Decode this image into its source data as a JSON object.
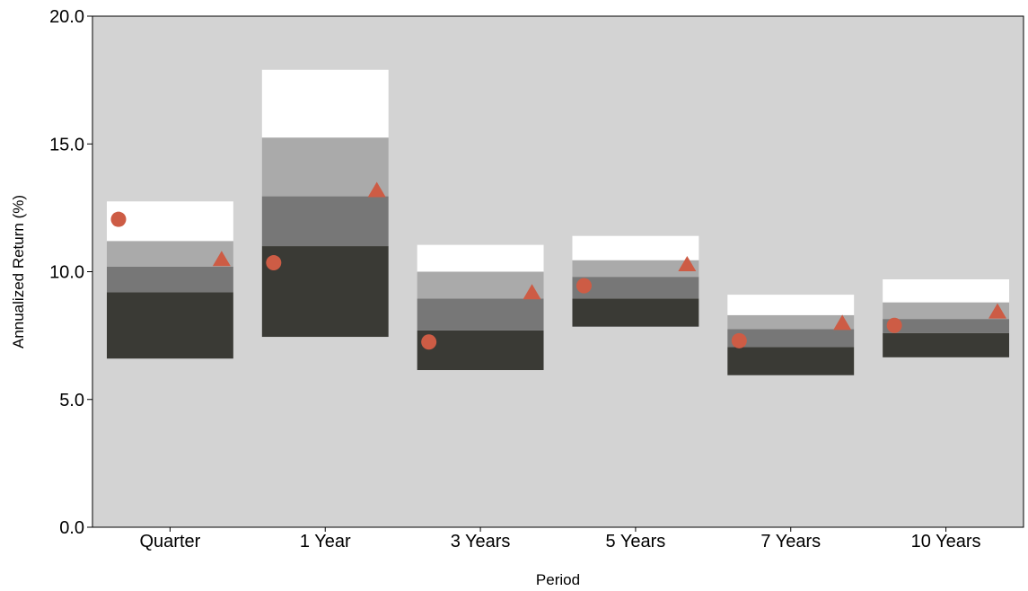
{
  "chart_data": {
    "type": "floating-bar",
    "title": "",
    "xlabel": "Period",
    "ylabel": "Annualized Return (%)",
    "ylim": [
      0,
      20
    ],
    "yticks": [
      "0.0",
      "5.0",
      "10.0",
      "15.0",
      "20.0"
    ],
    "categories": [
      "Quarter",
      "1 Year",
      "3 Years",
      "5 Years",
      "7 Years",
      "10 Years"
    ],
    "percentile_bands": [
      [
        6.6,
        9.2,
        10.2,
        11.2,
        12.75
      ],
      [
        7.45,
        11.0,
        12.95,
        15.25,
        17.9
      ],
      [
        6.15,
        7.7,
        8.95,
        10.0,
        11.05
      ],
      [
        7.85,
        8.95,
        9.8,
        10.45,
        11.4
      ],
      [
        5.95,
        7.05,
        7.75,
        8.3,
        9.1
      ],
      [
        6.65,
        7.6,
        8.15,
        8.8,
        9.7
      ]
    ],
    "band_colors": [
      "#3a3a35",
      "#777777",
      "#aaaaaa",
      "#ffffff"
    ],
    "series": [
      {
        "marker": "circle",
        "color": "#cd5c45",
        "values": [
          12.05,
          10.35,
          7.25,
          9.45,
          7.3,
          7.9
        ]
      },
      {
        "marker": "triangle",
        "color": "#cd5c45",
        "values": [
          10.5,
          13.2,
          9.2,
          10.3,
          8.0,
          8.45
        ]
      }
    ],
    "plot_background": "#d3d3d3",
    "grid": false
  }
}
